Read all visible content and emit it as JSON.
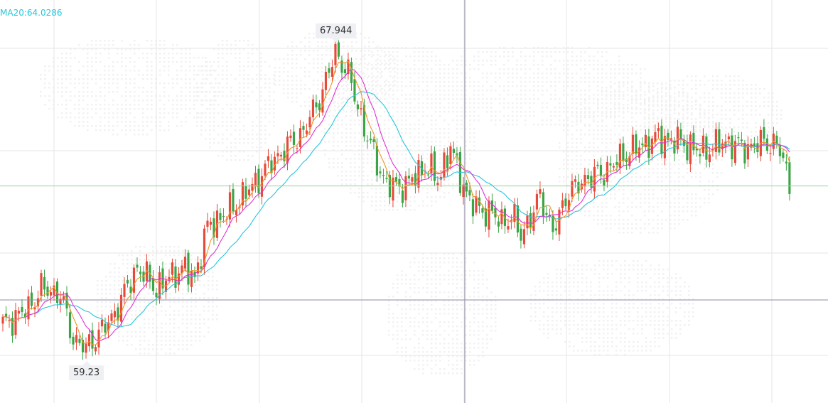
{
  "ma_indicator": {
    "label": "MA20:64.0286",
    "color": "#27c6da"
  },
  "callouts": {
    "high": "67.944",
    "low": "59.23"
  },
  "colors": {
    "up": "#e84a3a",
    "down": "#3aa545",
    "ma5": "#f0942a",
    "ma10": "#e032d4",
    "ma20": "#27c6da",
    "grid": "#e6e6e6",
    "crosshair": "#8e8ba8",
    "price_line": "#8fd89a",
    "watermark": "#f1f1f1"
  },
  "chart_data": {
    "type": "candlestick",
    "y_range": [
      58.6,
      68.8
    ],
    "last_price": 64.0,
    "high": 67.944,
    "low": 59.23,
    "anchors": [
      [
        0,
        59.9
      ],
      [
        8,
        60.4
      ],
      [
        12,
        61.0
      ],
      [
        18,
        60.8
      ],
      [
        22,
        59.5
      ],
      [
        26,
        59.23
      ],
      [
        34,
        60.1
      ],
      [
        42,
        61.6
      ],
      [
        48,
        61.0
      ],
      [
        56,
        61.6
      ],
      [
        60,
        61.3
      ],
      [
        64,
        62.8
      ],
      [
        70,
        63.2
      ],
      [
        78,
        64.0
      ],
      [
        84,
        64.7
      ],
      [
        94,
        65.6
      ],
      [
        100,
        66.8
      ],
      [
        104,
        67.944
      ],
      [
        108,
        67.3
      ],
      [
        114,
        65.4
      ],
      [
        120,
        64.0
      ],
      [
        126,
        64.0
      ],
      [
        132,
        64.6
      ],
      [
        136,
        64.2
      ],
      [
        140,
        65.1
      ],
      [
        146,
        63.5
      ],
      [
        152,
        63.2
      ],
      [
        156,
        63.0
      ],
      [
        160,
        63.0
      ],
      [
        162,
        62.6
      ],
      [
        166,
        63.2
      ],
      [
        168,
        63.8
      ],
      [
        172,
        62.6
      ],
      [
        176,
        63.7
      ],
      [
        182,
        64.2
      ],
      [
        188,
        64.4
      ],
      [
        194,
        64.9
      ],
      [
        198,
        65.1
      ],
      [
        204,
        65.4
      ],
      [
        212,
        65.3
      ],
      [
        218,
        65.0
      ],
      [
        226,
        65.3
      ],
      [
        232,
        65.1
      ],
      [
        238,
        65.3
      ],
      [
        242,
        65.2
      ],
      [
        244,
        64.8
      ],
      [
        246,
        64.0
      ]
    ]
  }
}
